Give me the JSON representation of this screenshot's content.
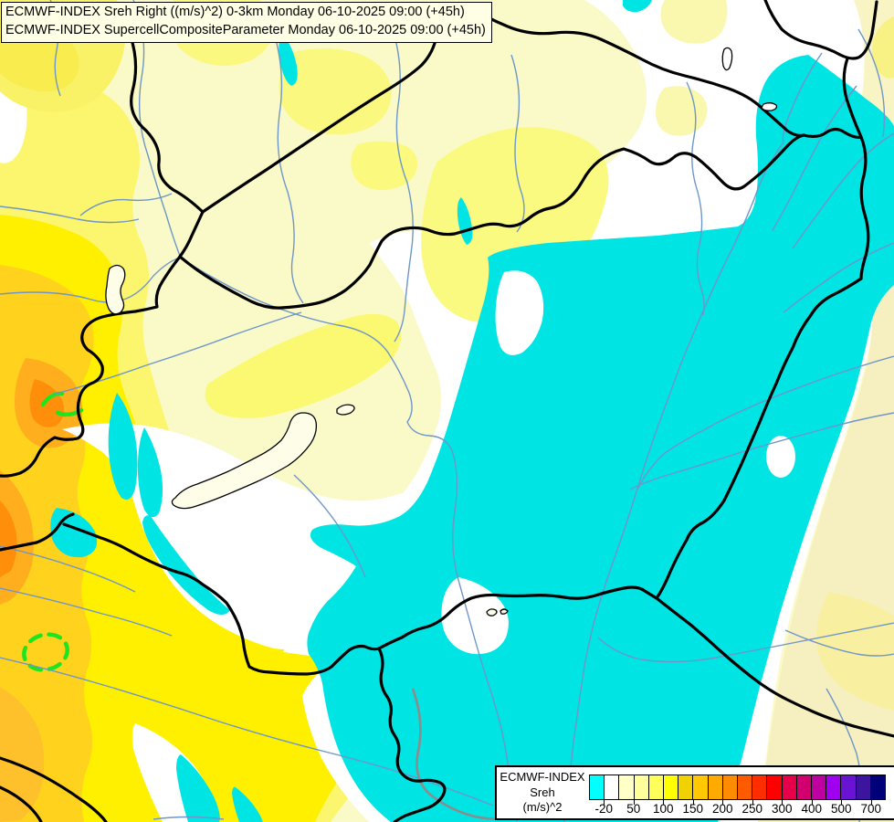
{
  "title_bar": {
    "line1": "ECMWF-INDEX Sreh Right ((m/s)^2) 0-3km Monday 06-10-2025 09:00 (+45h)",
    "line2": "ECMWF-INDEX SupercellCompositeParameter Monday 06-10-2025 09:00 (+45h)"
  },
  "legend": {
    "title_lines": [
      "ECMWF-INDEX",
      "Sreh",
      "(m/s)^2"
    ],
    "tick_labels": [
      "-20",
      "50",
      "100",
      "150",
      "200",
      "250",
      "300",
      "400",
      "500",
      "700"
    ],
    "colors": [
      "#00FFFF",
      "#FFFFFF",
      "#FFFFC8",
      "#FFFF9B",
      "#FFFF5A",
      "#FFFF00",
      "#F0D200",
      "#FFC800",
      "#FFAA00",
      "#FF8C00",
      "#FF5A00",
      "#FF2D00",
      "#FF0000",
      "#E60049",
      "#D2006E",
      "#BE00A0",
      "#A000F0",
      "#6914D2",
      "#3C14A0",
      "#000078"
    ]
  },
  "map": {
    "palette": {
      "background_pale_yellow": "#FAFAC8",
      "cream_east": "#F6EFC0",
      "white_fill": "#FFFFFF",
      "cyan_fill": "#00E4E4",
      "bright_yellow_fill": "#FFF000",
      "gold_fill": "#FFD21E",
      "orange_fill": "#FFAF1E",
      "deep_orange_fill": "#FF8F0A",
      "country_border": "#000000",
      "river_blue": "#6E96C8",
      "supercell_contour_green": "#1FE51F",
      "gray_line": "#8C8C8C"
    }
  }
}
